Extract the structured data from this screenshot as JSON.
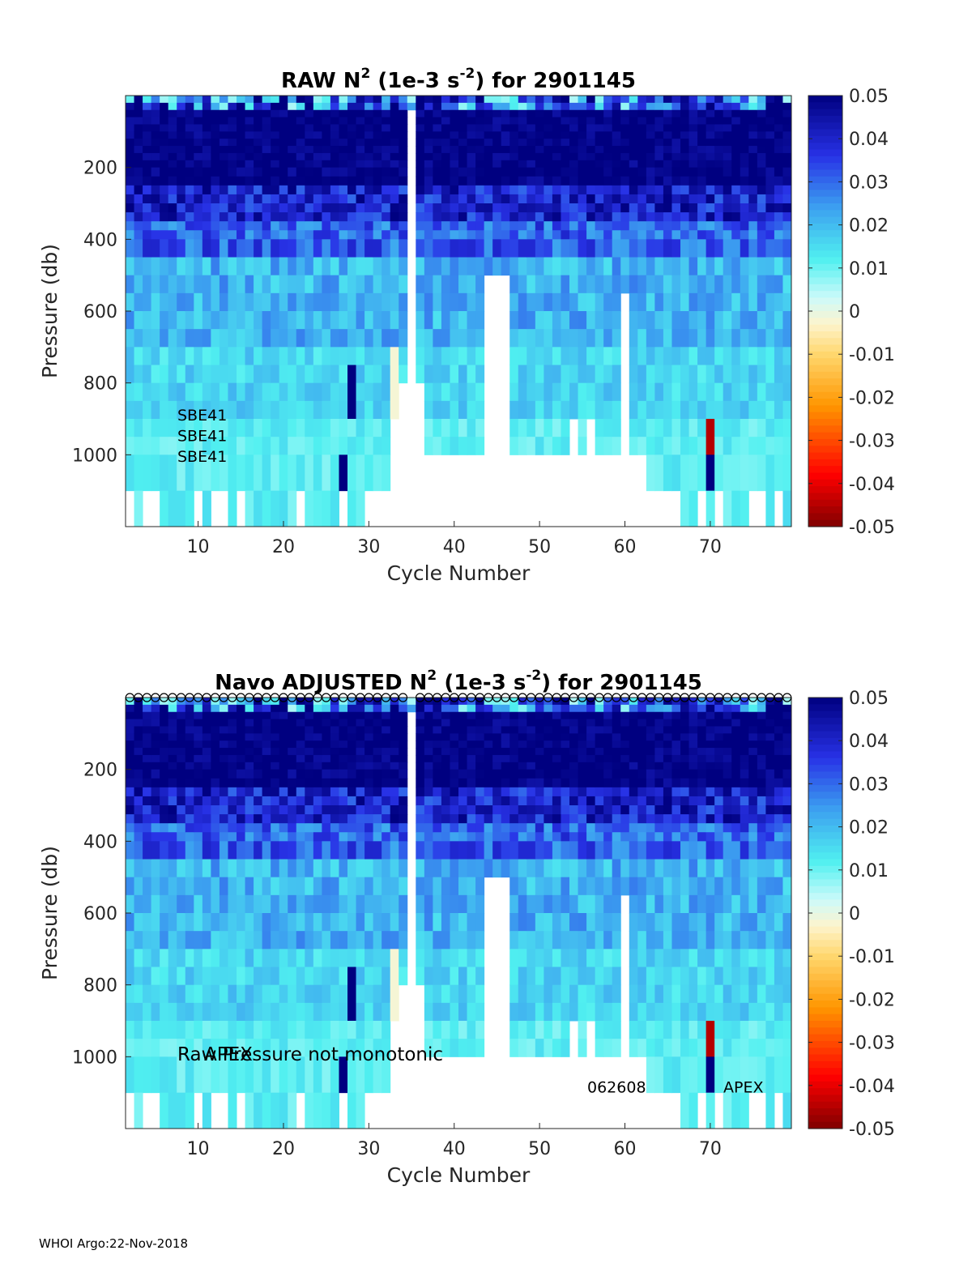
{
  "chart_data": [
    {
      "type": "heatmap",
      "title_main": "RAW N",
      "title_sup": "2",
      "title_units_pre": " (1e-3 s",
      "title_units_sup": "-2",
      "title_post": ") for 2901145",
      "xlabel": "Cycle Number",
      "ylabel": "Pressure (db)",
      "xlim": [
        1.5,
        79.5
      ],
      "ylim": [
        1200,
        0
      ],
      "xticks": [
        "10",
        "20",
        "30",
        "40",
        "50",
        "60",
        "70"
      ],
      "yticks": [
        "200",
        "400",
        "600",
        "800",
        "1000"
      ],
      "clim": [
        -0.05,
        0.05
      ],
      "colorbar_ticks": [
        "0.05",
        "0.04",
        "0.03",
        "0.02",
        "0.01",
        "0",
        "-0.01",
        "-0.02",
        "-0.03",
        "-0.04",
        "-0.05"
      ],
      "annotations": [
        "SBE41",
        "SBE41",
        "SBE41"
      ],
      "show_markers": false
    },
    {
      "type": "heatmap",
      "title_main": "Navo  ADJUSTED N",
      "title_sup": "2",
      "title_units_pre": " (1e-3 s",
      "title_units_sup": "-2",
      "title_post": ") for 2901145",
      "xlabel": "Cycle Number",
      "ylabel": "Pressure (db)",
      "xlim": [
        1.5,
        79.5
      ],
      "ylim": [
        1200,
        0
      ],
      "xticks": [
        "10",
        "20",
        "30",
        "40",
        "50",
        "60",
        "70"
      ],
      "yticks": [
        "200",
        "400",
        "600",
        "800",
        "1000"
      ],
      "clim": [
        -0.05,
        0.05
      ],
      "colorbar_ticks": [
        "0.05",
        "0.04",
        "0.03",
        "0.02",
        "0.01",
        "0",
        "-0.01",
        "-0.02",
        "-0.03",
        "-0.04",
        "-0.05"
      ],
      "annotations": [
        "Raw Pressure not monotonic",
        "APEX",
        "062608",
        "APEX"
      ],
      "show_markers": true
    }
  ],
  "footer": "WHOI Argo:22-Nov-2018"
}
